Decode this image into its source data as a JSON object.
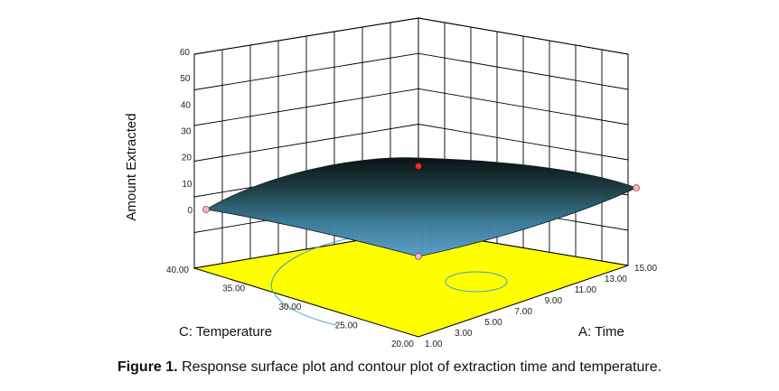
{
  "chart_data": {
    "type": "surface3d",
    "z_axis": {
      "label": "Amount Extracted",
      "ticks": [
        "0",
        "10",
        "20",
        "30",
        "40",
        "50",
        "60"
      ],
      "range": [
        0,
        60
      ]
    },
    "x_axis": {
      "label": "A: Time",
      "ticks": [
        "1.00",
        "3.00",
        "5.00",
        "7.00",
        "9.00",
        "11.00",
        "13.00",
        "15.00"
      ],
      "range": [
        1,
        15
      ]
    },
    "y_axis": {
      "label": "C: Temperature",
      "ticks": [
        "20.00",
        "25.00",
        "30.00",
        "35.00",
        "40.00"
      ],
      "range": [
        20,
        40
      ]
    },
    "grid": true,
    "contour_floor_color": "#ffff00",
    "surface_color_low": "#5fa7d6",
    "surface_color_high": "#0a1414",
    "surface_points": [
      {
        "time": 1,
        "temperature": 40,
        "amount": 0
      },
      {
        "time": 1,
        "temperature": 20,
        "amount": 0
      },
      {
        "time": 15,
        "temperature": 20,
        "amount": 9
      },
      {
        "time": 15,
        "temperature": 40,
        "amount": 17
      }
    ]
  },
  "caption": {
    "label": "Figure 1.",
    "text": "Response surface plot and contour plot of extraction time and temperature."
  }
}
